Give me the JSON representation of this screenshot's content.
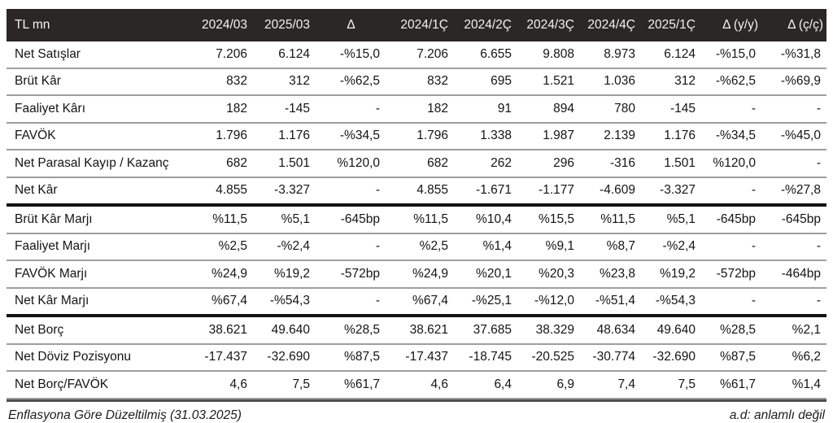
{
  "table": {
    "header": [
      "TL mn",
      "2024/03",
      "2025/03",
      "Δ",
      "2024/1Ç",
      "2024/2Ç",
      "2024/3Ç",
      "2024/4Ç",
      "2025/1Ç",
      "Δ (y/y)",
      "Δ (ç/ç)"
    ],
    "rows": [
      {
        "label": "Net Satışlar",
        "values": [
          "7.206",
          "6.124",
          "-%15,0",
          "7.206",
          "6.655",
          "9.808",
          "8.973",
          "6.124",
          "-%15,0",
          "-%31,8"
        ],
        "thick_border": false
      },
      {
        "label": "Brüt Kâr",
        "values": [
          "832",
          "312",
          "-%62,5",
          "832",
          "695",
          "1.521",
          "1.036",
          "312",
          "-%62,5",
          "-%69,9"
        ],
        "thick_border": false
      },
      {
        "label": "Faaliyet Kârı",
        "values": [
          "182",
          "-145",
          "-",
          "182",
          "91",
          "894",
          "780",
          "-145",
          "-",
          "-"
        ],
        "thick_border": false
      },
      {
        "label": "FAVÖK",
        "values": [
          "1.796",
          "1.176",
          "-%34,5",
          "1.796",
          "1.338",
          "1.987",
          "2.139",
          "1.176",
          "-%34,5",
          "-%45,0"
        ],
        "thick_border": false
      },
      {
        "label": "Net Parasal Kayıp / Kazanç",
        "values": [
          "682",
          "1.501",
          "%120,0",
          "682",
          "262",
          "296",
          "-316",
          "1.501",
          "%120,0",
          "-"
        ],
        "thick_border": false
      },
      {
        "label": "Net Kâr",
        "values": [
          "4.855",
          "-3.327",
          "-",
          "4.855",
          "-1.671",
          "-1.177",
          "-4.609",
          "-3.327",
          "-",
          "-%27,8"
        ],
        "thick_border": true
      },
      {
        "label": "Brüt Kâr Marjı",
        "values": [
          "%11,5",
          "%5,1",
          "-645bp",
          "%11,5",
          "%10,4",
          "%15,5",
          "%11,5",
          "%5,1",
          "-645bp",
          "-645bp"
        ],
        "thick_border": false
      },
      {
        "label": "Faaliyet Marjı",
        "values": [
          "%2,5",
          "-%2,4",
          "-",
          "%2,5",
          "%1,4",
          "%9,1",
          "%8,7",
          "-%2,4",
          "-",
          "-"
        ],
        "thick_border": false
      },
      {
        "label": "FAVÖK Marjı",
        "values": [
          "%24,9",
          "%19,2",
          "-572bp",
          "%24,9",
          "%20,1",
          "%20,3",
          "%23,8",
          "%19,2",
          "-572bp",
          "-464bp"
        ],
        "thick_border": false
      },
      {
        "label": "Net Kâr Marjı",
        "values": [
          "%67,4",
          "-%54,3",
          "-",
          "%67,4",
          "-%25,1",
          "-%12,0",
          "-%51,4",
          "-%54,3",
          "-",
          "-"
        ],
        "thick_border": true
      },
      {
        "label": "Net Borç",
        "values": [
          "38.621",
          "49.640",
          "%28,5",
          "38.621",
          "37.685",
          "38.329",
          "48.634",
          "49.640",
          "%28,5",
          "%2,1"
        ],
        "thick_border": false
      },
      {
        "label": "Net Döviz Pozisyonu",
        "values": [
          "-17.437",
          "-32.690",
          "%87,5",
          "-17.437",
          "-18.745",
          "-20.525",
          "-30.774",
          "-32.690",
          "%87,5",
          "%6,2"
        ],
        "thick_border": false
      },
      {
        "label": "Net Borç/FAVÖK",
        "values": [
          "4,6",
          "7,5",
          "%61,7",
          "4,6",
          "6,4",
          "6,9",
          "7,4",
          "7,5",
          "%61,7",
          "%1,4"
        ],
        "thick_border": false
      }
    ],
    "footnote_left": "Enflasyona Göre Düzeltilmiş (31.03.2025)",
    "footnote_right": "a.d: anlamlı değil"
  },
  "colors": {
    "header_bg": "#2b2724",
    "header_text": "#f4f2ef",
    "row_separator": "#9e9e9e",
    "section_border": "#121212",
    "body_text": "#141414"
  }
}
